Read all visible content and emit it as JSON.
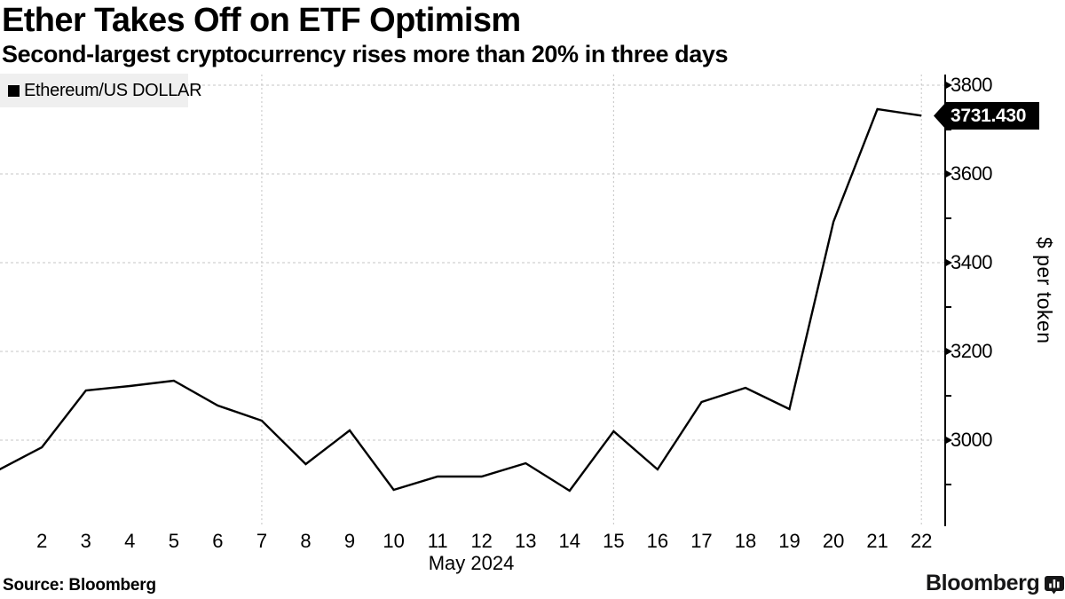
{
  "header": {
    "title": "Ether Takes Off on ETF Optimism",
    "subtitle": "Second-largest cryptocurrency rises more than 20% in three days"
  },
  "legend": {
    "label": "Ethereum/US DOLLAR"
  },
  "price_badge": {
    "value": "3731.430"
  },
  "footer": {
    "source_label": "Source: Bloomberg",
    "brand": "Bloomberg"
  },
  "colors": {
    "line": "#000000",
    "grid": "#c4c4c4",
    "legend_bg": "#efefef",
    "badge_bg": "#000000",
    "badge_text": "#ffffff",
    "axis": "#000000"
  },
  "chart_data": {
    "type": "line",
    "title": "Ether Takes Off on ETF Optimism",
    "subtitle": "Second-largest cryptocurrency rises more than 20% in three days",
    "series": [
      {
        "name": "Ethereum/US DOLLAR",
        "x": [
          1,
          2,
          3,
          4,
          5,
          6,
          7,
          8,
          9,
          10,
          11,
          12,
          13,
          14,
          15,
          16,
          17,
          18,
          19,
          20,
          21,
          22
        ],
        "values": [
          2932,
          2984,
          3112,
          3122,
          3134,
          3078,
          3044,
          2946,
          3022,
          2888,
          2918,
          2918,
          2948,
          2886,
          3020,
          2934,
          3086,
          3118,
          3070,
          3492,
          3746,
          3731.43
        ]
      }
    ],
    "last_value": "3731.430",
    "xlabel": "May 2024",
    "ylabel": "$ per token",
    "x_tick_labels": [
      2,
      3,
      4,
      5,
      6,
      7,
      8,
      9,
      10,
      11,
      12,
      13,
      14,
      15,
      16,
      17,
      18,
      19,
      20,
      21,
      22
    ],
    "x_gridline_days": [
      7,
      15,
      22
    ],
    "y_major_ticks": [
      3800,
      3600,
      3400,
      3200,
      3000
    ],
    "y_minor_ticks": [
      3700,
      3500,
      3300,
      3100,
      2900
    ],
    "ylim": [
      2854,
      3824
    ],
    "grid": "dashed-light",
    "legend_position": "top-left",
    "y_axis_side": "right"
  }
}
